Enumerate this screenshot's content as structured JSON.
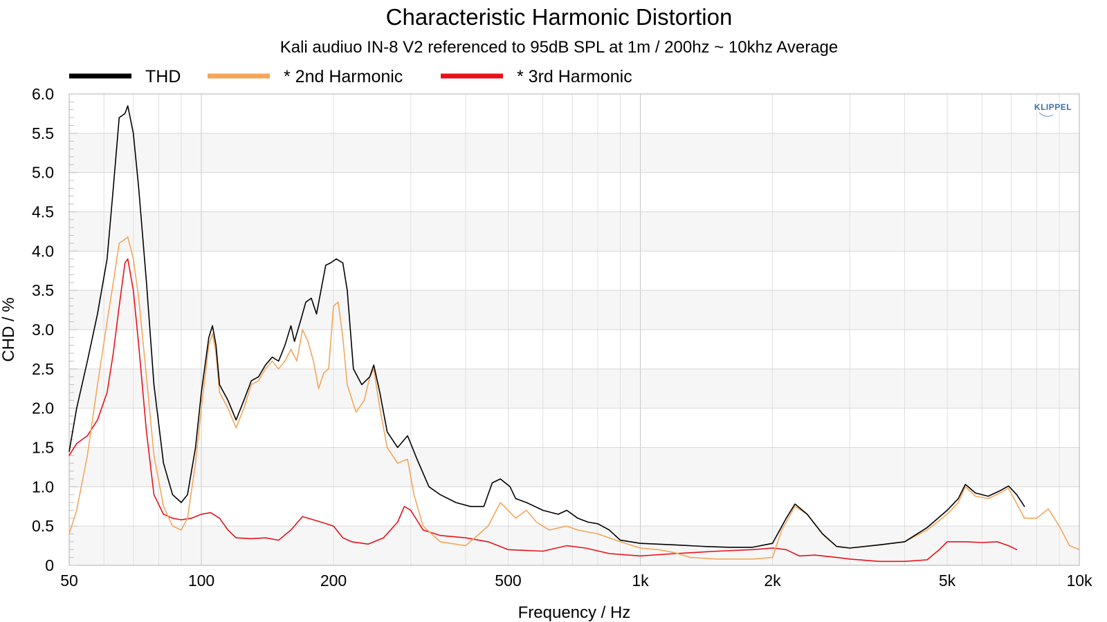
{
  "chart_data": {
    "type": "line",
    "title": "Characteristic Harmonic Distortion",
    "subtitle": "Kali audiuo IN-8 V2 referenced to 95dB SPL at 1m / 200hz ~ 10khz Average",
    "xlabel": "Frequency / Hz",
    "ylabel": "CHD / %",
    "xscale": "log",
    "xlim": [
      50,
      10000
    ],
    "ylim": [
      0,
      6.0
    ],
    "x_ticks": [
      {
        "value": 50,
        "label": "50"
      },
      {
        "value": 100,
        "label": "100"
      },
      {
        "value": 200,
        "label": "200"
      },
      {
        "value": 500,
        "label": "500"
      },
      {
        "value": 1000,
        "label": "1k"
      },
      {
        "value": 2000,
        "label": "2k"
      },
      {
        "value": 5000,
        "label": "5k"
      },
      {
        "value": 10000,
        "label": "10k"
      }
    ],
    "y_ticks": [
      {
        "value": 0,
        "label": "0"
      },
      {
        "value": 0.5,
        "label": "0.5"
      },
      {
        "value": 1.0,
        "label": "1.0"
      },
      {
        "value": 1.5,
        "label": "1.5"
      },
      {
        "value": 2.0,
        "label": "2.0"
      },
      {
        "value": 2.5,
        "label": "2.5"
      },
      {
        "value": 3.0,
        "label": "3.0"
      },
      {
        "value": 3.5,
        "label": "3.5"
      },
      {
        "value": 4.0,
        "label": "4.0"
      },
      {
        "value": 4.5,
        "label": "4.5"
      },
      {
        "value": 5.0,
        "label": "5.0"
      },
      {
        "value": 5.5,
        "label": "5.5"
      },
      {
        "value": 6.0,
        "label": "6.0"
      }
    ],
    "grid": true,
    "legend_position": "top-left",
    "series": [
      {
        "name": "THD",
        "color": "#000000",
        "points": [
          [
            50,
            1.45
          ],
          [
            52,
            2.0
          ],
          [
            55,
            2.6
          ],
          [
            58,
            3.2
          ],
          [
            61,
            3.9
          ],
          [
            63,
            4.8
          ],
          [
            65,
            5.7
          ],
          [
            67,
            5.75
          ],
          [
            68,
            5.85
          ],
          [
            70,
            5.5
          ],
          [
            72,
            4.8
          ],
          [
            75,
            3.6
          ],
          [
            78,
            2.3
          ],
          [
            82,
            1.3
          ],
          [
            86,
            0.9
          ],
          [
            90,
            0.8
          ],
          [
            93,
            0.9
          ],
          [
            97,
            1.5
          ],
          [
            100,
            2.2
          ],
          [
            104,
            2.9
          ],
          [
            106,
            3.05
          ],
          [
            108,
            2.8
          ],
          [
            110,
            2.3
          ],
          [
            115,
            2.1
          ],
          [
            120,
            1.85
          ],
          [
            125,
            2.1
          ],
          [
            130,
            2.35
          ],
          [
            135,
            2.4
          ],
          [
            140,
            2.55
          ],
          [
            145,
            2.65
          ],
          [
            150,
            2.6
          ],
          [
            155,
            2.8
          ],
          [
            160,
            3.05
          ],
          [
            163,
            2.85
          ],
          [
            168,
            3.1
          ],
          [
            173,
            3.35
          ],
          [
            178,
            3.4
          ],
          [
            183,
            3.2
          ],
          [
            188,
            3.55
          ],
          [
            192,
            3.82
          ],
          [
            197,
            3.85
          ],
          [
            203,
            3.9
          ],
          [
            210,
            3.85
          ],
          [
            215,
            3.5
          ],
          [
            222,
            2.5
          ],
          [
            232,
            2.3
          ],
          [
            242,
            2.4
          ],
          [
            247,
            2.55
          ],
          [
            255,
            2.2
          ],
          [
            265,
            1.7
          ],
          [
            280,
            1.5
          ],
          [
            295,
            1.65
          ],
          [
            310,
            1.35
          ],
          [
            330,
            1.0
          ],
          [
            350,
            0.9
          ],
          [
            380,
            0.8
          ],
          [
            410,
            0.75
          ],
          [
            440,
            0.75
          ],
          [
            460,
            1.05
          ],
          [
            480,
            1.1
          ],
          [
            505,
            1.0
          ],
          [
            520,
            0.85
          ],
          [
            550,
            0.8
          ],
          [
            600,
            0.7
          ],
          [
            650,
            0.65
          ],
          [
            680,
            0.7
          ],
          [
            720,
            0.6
          ],
          [
            760,
            0.55
          ],
          [
            800,
            0.53
          ],
          [
            850,
            0.45
          ],
          [
            900,
            0.32
          ],
          [
            1000,
            0.28
          ],
          [
            1200,
            0.26
          ],
          [
            1400,
            0.24
          ],
          [
            1600,
            0.23
          ],
          [
            1800,
            0.23
          ],
          [
            2000,
            0.28
          ],
          [
            2150,
            0.6
          ],
          [
            2250,
            0.78
          ],
          [
            2400,
            0.65
          ],
          [
            2600,
            0.4
          ],
          [
            2800,
            0.24
          ],
          [
            3000,
            0.22
          ],
          [
            3500,
            0.26
          ],
          [
            4000,
            0.3
          ],
          [
            4500,
            0.48
          ],
          [
            5000,
            0.7
          ],
          [
            5300,
            0.85
          ],
          [
            5500,
            1.03
          ],
          [
            5800,
            0.92
          ],
          [
            6200,
            0.88
          ],
          [
            6600,
            0.95
          ],
          [
            6900,
            1.01
          ],
          [
            7200,
            0.9
          ],
          [
            7500,
            0.75
          ]
        ]
      },
      {
        "name": "* 2nd Harmonic",
        "color": "#f5a55a",
        "points": [
          [
            50,
            0.4
          ],
          [
            52,
            0.7
          ],
          [
            55,
            1.4
          ],
          [
            58,
            2.3
          ],
          [
            61,
            3.1
          ],
          [
            63,
            3.6
          ],
          [
            65,
            4.1
          ],
          [
            67,
            4.15
          ],
          [
            68,
            4.18
          ],
          [
            70,
            3.9
          ],
          [
            72,
            3.4
          ],
          [
            75,
            2.4
          ],
          [
            78,
            1.4
          ],
          [
            82,
            0.75
          ],
          [
            86,
            0.5
          ],
          [
            90,
            0.45
          ],
          [
            93,
            0.6
          ],
          [
            97,
            1.3
          ],
          [
            100,
            2.0
          ],
          [
            104,
            2.8
          ],
          [
            106,
            2.95
          ],
          [
            108,
            2.7
          ],
          [
            110,
            2.2
          ],
          [
            115,
            2.0
          ],
          [
            120,
            1.75
          ],
          [
            125,
            2.0
          ],
          [
            130,
            2.3
          ],
          [
            135,
            2.35
          ],
          [
            140,
            2.5
          ],
          [
            145,
            2.6
          ],
          [
            150,
            2.5
          ],
          [
            155,
            2.6
          ],
          [
            160,
            2.75
          ],
          [
            165,
            2.6
          ],
          [
            170,
            3.0
          ],
          [
            175,
            2.85
          ],
          [
            180,
            2.6
          ],
          [
            185,
            2.25
          ],
          [
            190,
            2.45
          ],
          [
            195,
            2.5
          ],
          [
            200,
            3.3
          ],
          [
            205,
            3.35
          ],
          [
            210,
            2.9
          ],
          [
            215,
            2.3
          ],
          [
            225,
            1.95
          ],
          [
            235,
            2.1
          ],
          [
            242,
            2.4
          ],
          [
            247,
            2.5
          ],
          [
            255,
            2.0
          ],
          [
            265,
            1.5
          ],
          [
            280,
            1.3
          ],
          [
            295,
            1.35
          ],
          [
            305,
            0.9
          ],
          [
            320,
            0.5
          ],
          [
            350,
            0.3
          ],
          [
            400,
            0.25
          ],
          [
            450,
            0.5
          ],
          [
            480,
            0.8
          ],
          [
            500,
            0.7
          ],
          [
            520,
            0.6
          ],
          [
            550,
            0.7
          ],
          [
            580,
            0.55
          ],
          [
            620,
            0.45
          ],
          [
            680,
            0.5
          ],
          [
            720,
            0.45
          ],
          [
            800,
            0.4
          ],
          [
            900,
            0.3
          ],
          [
            1000,
            0.22
          ],
          [
            1100,
            0.2
          ],
          [
            1200,
            0.16
          ],
          [
            1300,
            0.1
          ],
          [
            1500,
            0.08
          ],
          [
            1800,
            0.08
          ],
          [
            2000,
            0.1
          ],
          [
            2100,
            0.45
          ],
          [
            2250,
            0.75
          ],
          [
            2400,
            0.65
          ],
          [
            2600,
            0.4
          ],
          [
            2800,
            0.24
          ],
          [
            3000,
            0.22
          ],
          [
            3500,
            0.26
          ],
          [
            4000,
            0.3
          ],
          [
            4500,
            0.45
          ],
          [
            5000,
            0.65
          ],
          [
            5300,
            0.8
          ],
          [
            5500,
            1.0
          ],
          [
            5800,
            0.88
          ],
          [
            6200,
            0.85
          ],
          [
            6600,
            0.92
          ],
          [
            6900,
            0.98
          ],
          [
            7500,
            0.6
          ],
          [
            8000,
            0.6
          ],
          [
            8500,
            0.72
          ],
          [
            9000,
            0.5
          ],
          [
            9500,
            0.25
          ],
          [
            10000,
            0.2
          ]
        ]
      },
      {
        "name": "* 3rd Harmonic",
        "color": "#e8101a",
        "points": [
          [
            50,
            1.4
          ],
          [
            52,
            1.55
          ],
          [
            55,
            1.65
          ],
          [
            58,
            1.85
          ],
          [
            61,
            2.2
          ],
          [
            63,
            2.7
          ],
          [
            65,
            3.3
          ],
          [
            67,
            3.85
          ],
          [
            68,
            3.9
          ],
          [
            70,
            3.5
          ],
          [
            72,
            2.8
          ],
          [
            75,
            1.7
          ],
          [
            78,
            0.9
          ],
          [
            82,
            0.65
          ],
          [
            86,
            0.6
          ],
          [
            90,
            0.58
          ],
          [
            95,
            0.6
          ],
          [
            100,
            0.65
          ],
          [
            105,
            0.67
          ],
          [
            110,
            0.6
          ],
          [
            115,
            0.45
          ],
          [
            120,
            0.35
          ],
          [
            130,
            0.34
          ],
          [
            140,
            0.35
          ],
          [
            150,
            0.32
          ],
          [
            160,
            0.45
          ],
          [
            170,
            0.62
          ],
          [
            180,
            0.58
          ],
          [
            190,
            0.54
          ],
          [
            200,
            0.5
          ],
          [
            210,
            0.35
          ],
          [
            220,
            0.3
          ],
          [
            240,
            0.27
          ],
          [
            260,
            0.35
          ],
          [
            280,
            0.55
          ],
          [
            290,
            0.75
          ],
          [
            300,
            0.7
          ],
          [
            320,
            0.45
          ],
          [
            350,
            0.38
          ],
          [
            400,
            0.35
          ],
          [
            450,
            0.3
          ],
          [
            500,
            0.2
          ],
          [
            600,
            0.18
          ],
          [
            680,
            0.25
          ],
          [
            750,
            0.22
          ],
          [
            850,
            0.15
          ],
          [
            1000,
            0.12
          ],
          [
            1200,
            0.15
          ],
          [
            1500,
            0.18
          ],
          [
            1800,
            0.2
          ],
          [
            2000,
            0.22
          ],
          [
            2150,
            0.2
          ],
          [
            2300,
            0.12
          ],
          [
            2500,
            0.13
          ],
          [
            2800,
            0.1
          ],
          [
            3000,
            0.08
          ],
          [
            3500,
            0.05
          ],
          [
            4000,
            0.05
          ],
          [
            4500,
            0.07
          ],
          [
            4800,
            0.2
          ],
          [
            5000,
            0.3
          ],
          [
            5500,
            0.3
          ],
          [
            6000,
            0.29
          ],
          [
            6500,
            0.3
          ],
          [
            6900,
            0.25
          ],
          [
            7200,
            0.2
          ]
        ]
      }
    ]
  },
  "logo": {
    "text": "KLIPPEL"
  }
}
